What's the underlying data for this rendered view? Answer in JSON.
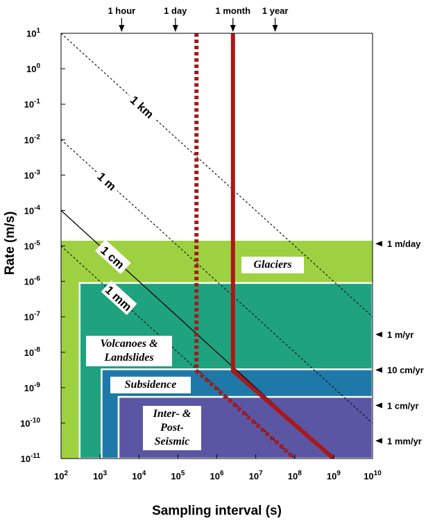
{
  "chart_data": {
    "type": "line",
    "xlabel": "Sampling interval (s)",
    "ylabel": "Rate (m/s)",
    "x_scale": "log",
    "y_scale": "log",
    "xlim": [
      100,
      10000000000
    ],
    "ylim": [
      1e-11,
      10
    ],
    "x_ticks": [
      {
        "value": 100,
        "base": "10",
        "exp": "2"
      },
      {
        "value": 1000,
        "base": "10",
        "exp": "3"
      },
      {
        "value": 10000,
        "base": "10",
        "exp": "4"
      },
      {
        "value": 100000,
        "base": "10",
        "exp": "5"
      },
      {
        "value": 1000000,
        "base": "10",
        "exp": "6"
      },
      {
        "value": 10000000,
        "base": "10",
        "exp": "7"
      },
      {
        "value": 100000000,
        "base": "10",
        "exp": "8"
      },
      {
        "value": 1000000000,
        "base": "10",
        "exp": "9"
      },
      {
        "value": 10000000000,
        "base": "10",
        "exp": "10"
      }
    ],
    "y_ticks": [
      {
        "value": 10,
        "base": "10",
        "exp": "1"
      },
      {
        "value": 1,
        "base": "10",
        "exp": "0"
      },
      {
        "value": 0.1,
        "base": "10",
        "exp": "-1"
      },
      {
        "value": 0.01,
        "base": "10",
        "exp": "-2"
      },
      {
        "value": 0.001,
        "base": "10",
        "exp": "-3"
      },
      {
        "value": 0.0001,
        "base": "10",
        "exp": "-4"
      },
      {
        "value": 1e-05,
        "base": "10",
        "exp": "-5"
      },
      {
        "value": 1e-06,
        "base": "10",
        "exp": "-6"
      },
      {
        "value": 1e-07,
        "base": "10",
        "exp": "-7"
      },
      {
        "value": 1e-08,
        "base": "10",
        "exp": "-8"
      },
      {
        "value": 1e-09,
        "base": "10",
        "exp": "-9"
      },
      {
        "value": 1e-10,
        "base": "10",
        "exp": "-10"
      },
      {
        "value": 1e-11,
        "base": "10",
        "exp": "-11"
      }
    ],
    "top_markers": [
      {
        "label": "1 hour",
        "x": 3600
      },
      {
        "label": "1 day",
        "x": 86400
      },
      {
        "label": "1 month",
        "x": 2600000
      },
      {
        "label": "1 year",
        "x": 31500000
      }
    ],
    "right_markers": [
      {
        "label": "1 m/day",
        "y": 1.16e-05
      },
      {
        "label": "1 m/yr",
        "y": 3.17e-08
      },
      {
        "label": "10 cm/yr",
        "y": 3.17e-09
      },
      {
        "label": "1 cm/yr",
        "y": 3.17e-10
      },
      {
        "label": "1 mm/yr",
        "y": 3.17e-11
      }
    ],
    "regions": [
      {
        "label": [
          "Glaciers"
        ],
        "x": [
          100,
          10000000000
        ],
        "y": [
          1e-11,
          1.4e-05
        ],
        "color": "#9ed142"
      },
      {
        "label": [
          "Volcanoes &",
          "Landslides"
        ],
        "x": [
          300,
          10000000000
        ],
        "y": [
          1e-11,
          9e-07
        ],
        "color": "#1fa27e"
      },
      {
        "label": [
          "Subsidence"
        ],
        "x": [
          1100,
          10000000000
        ],
        "y": [
          1e-11,
          3.3e-09
        ],
        "color": "#1f79a8"
      },
      {
        "label": [
          "Inter- &",
          "Post-",
          "Seismic"
        ],
        "x": [
          3000,
          10000000000
        ],
        "y": [
          1e-11,
          5.5e-10
        ],
        "color": "#5b56a4"
      }
    ],
    "displacement_lines": [
      {
        "label": "1 km",
        "displacement_m": 1000,
        "style": "dashed"
      },
      {
        "label": "1 m",
        "displacement_m": 1,
        "style": "dashed"
      },
      {
        "label": "1 cm",
        "displacement_m": 0.01,
        "style": "solid"
      },
      {
        "label": "1 mm",
        "displacement_m": 0.001,
        "style": "dashed"
      }
    ],
    "series": [
      {
        "style": "solid",
        "color": "#a8191a",
        "x": [
          2600000,
          2600000,
          1000000000
        ],
        "y": [
          10,
          3e-09,
          1e-11
        ]
      },
      {
        "style": "dotted",
        "color": "#a8191a",
        "x": [
          300000,
          300000,
          100000000
        ],
        "y": [
          10,
          3e-09,
          1e-11
        ]
      }
    ]
  }
}
